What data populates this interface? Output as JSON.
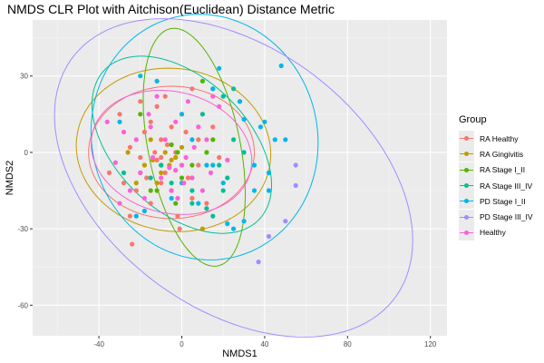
{
  "chart_data": {
    "type": "scatter",
    "title": "NMDS CLR Plot with Aitchison(Euclidean) Distance Metric",
    "xlabel": "NMDS1",
    "ylabel": "NMDS2",
    "xlim": [
      -72,
      128
    ],
    "ylim": [
      -72,
      52
    ],
    "x_ticks": [
      -40,
      0,
      40,
      80,
      120
    ],
    "y_ticks": [
      -60,
      -30,
      0,
      30
    ],
    "grid": true,
    "legend_title": "Group",
    "legend_position": "right",
    "series": [
      {
        "name": "RA Healthy",
        "color": "#F8766D",
        "ellipse": {
          "cx": -5,
          "cy": 0,
          "rx": 40,
          "ry": 26,
          "angle": 0
        },
        "points": [
          [
            -35,
            -8
          ],
          [
            -30,
            15
          ],
          [
            -28,
            -12
          ],
          [
            -25,
            2
          ],
          [
            -22,
            -15
          ],
          [
            -20,
            20
          ],
          [
            -18,
            8
          ],
          [
            -18,
            -5
          ],
          [
            -15,
            12
          ],
          [
            -15,
            -20
          ],
          [
            -12,
            18
          ],
          [
            -12,
            -3
          ],
          [
            -10,
            5
          ],
          [
            -10,
            -12
          ],
          [
            -8,
            22
          ],
          [
            -8,
            -8
          ],
          [
            -5,
            -15
          ],
          [
            -5,
            10
          ],
          [
            -3,
            0
          ],
          [
            -2,
            -25
          ],
          [
            0,
            15
          ],
          [
            0,
            -5
          ],
          [
            2,
            8
          ],
          [
            3,
            -10
          ],
          [
            5,
            25
          ],
          [
            5,
            -18
          ],
          [
            8,
            5
          ],
          [
            8,
            -5
          ],
          [
            10,
            15
          ],
          [
            12,
            -20
          ],
          [
            15,
            10
          ],
          [
            18,
            -2
          ],
          [
            -25,
            -25
          ],
          [
            -20,
            -2
          ],
          [
            -17,
            -10
          ],
          [
            -13,
            0
          ],
          [
            -7,
            3
          ],
          [
            -1,
            -30
          ],
          [
            -24,
            -36
          ],
          [
            -10,
            -2
          ]
        ]
      },
      {
        "name": "RA Gingivitis",
        "color": "#C49A00",
        "ellipse": {
          "cx": -4,
          "cy": 1,
          "rx": 47,
          "ry": 32,
          "angle": -4
        },
        "points": [
          [
            -22,
            -12
          ],
          [
            -18,
            -5
          ],
          [
            -15,
            5
          ],
          [
            -10,
            -8
          ],
          [
            -8,
            0
          ],
          [
            -5,
            -3
          ],
          [
            0,
            2
          ],
          [
            5,
            -10
          ],
          [
            -12,
            -12
          ],
          [
            -6,
            -5
          ],
          [
            10,
            -30
          ],
          [
            -20,
            -8
          ],
          [
            -3,
            -2
          ],
          [
            -14,
            -3
          ],
          [
            -26,
            0
          ]
        ]
      },
      {
        "name": "RA Stage I_II",
        "color": "#53B400",
        "ellipse": {
          "cx": 6,
          "cy": 2,
          "rx": 22,
          "ry": 48,
          "angle": 15
        },
        "points": [
          [
            -20,
            15
          ],
          [
            -15,
            -15
          ],
          [
            -10,
            -5
          ],
          [
            -5,
            3
          ],
          [
            0,
            -10
          ],
          [
            5,
            -5
          ],
          [
            10,
            28
          ],
          [
            12,
            0
          ],
          [
            15,
            5
          ],
          [
            -3,
            -20
          ],
          [
            -12,
            -15
          ],
          [
            -2,
            0
          ]
        ]
      },
      {
        "name": "RA Stage III_IV",
        "color": "#00C094",
        "ellipse": {
          "cx": 0,
          "cy": 3,
          "rx": 48,
          "ry": 28,
          "angle": -32
        },
        "points": [
          [
            -28,
            -8
          ],
          [
            -15,
            -10
          ],
          [
            -5,
            -12
          ],
          [
            5,
            -20
          ],
          [
            10,
            15
          ],
          [
            15,
            25
          ],
          [
            20,
            22
          ],
          [
            25,
            25
          ],
          [
            28,
            20
          ],
          [
            25,
            5
          ],
          [
            22,
            -10
          ],
          [
            20,
            -15
          ],
          [
            15,
            -25
          ],
          [
            12,
            -22
          ],
          [
            5,
            -15
          ],
          [
            -10,
            -5
          ],
          [
            30,
            0
          ],
          [
            18,
            -5
          ]
        ]
      },
      {
        "name": "PD Stage I_II",
        "color": "#00B6EB",
        "ellipse": {
          "cx": 11,
          "cy": 6,
          "rx": 55,
          "ry": 48,
          "angle": -10
        },
        "points": [
          [
            -30,
            12
          ],
          [
            -22,
            -25
          ],
          [
            -20,
            30
          ],
          [
            -12,
            28
          ],
          [
            0,
            15
          ],
          [
            5,
            5
          ],
          [
            15,
            25
          ],
          [
            18,
            33
          ],
          [
            22,
            -28
          ],
          [
            28,
            20
          ],
          [
            30,
            13
          ],
          [
            35,
            -5
          ],
          [
            38,
            10
          ],
          [
            40,
            12
          ],
          [
            42,
            -8
          ],
          [
            45,
            5
          ],
          [
            50,
            5
          ],
          [
            -18,
            -23
          ],
          [
            -5,
            -18
          ],
          [
            12,
            -5
          ],
          [
            25,
            -30
          ],
          [
            30,
            -27
          ],
          [
            35,
            -15
          ],
          [
            8,
            -20
          ],
          [
            42,
            -15
          ],
          [
            48,
            34
          ],
          [
            20,
            -12
          ],
          [
            15,
            -5
          ],
          [
            0,
            -12
          ]
        ]
      },
      {
        "name": "PD Stage III_IV",
        "color": "#A58AFF",
        "ellipse": {
          "cx": 25,
          "cy": -10,
          "rx": 92,
          "ry": 54,
          "angle": -25
        },
        "points": [
          [
            55,
            -5
          ],
          [
            55,
            -13
          ],
          [
            50,
            -27
          ],
          [
            42,
            -33
          ],
          [
            37,
            -43
          ]
        ]
      },
      {
        "name": "Healthy",
        "color": "#FB61D7",
        "ellipse": {
          "cx": -5,
          "cy": 0,
          "rx": 39,
          "ry": 24,
          "angle": -8
        },
        "points": [
          [
            -36,
            12
          ],
          [
            -30,
            -20
          ],
          [
            -28,
            8
          ],
          [
            -25,
            -15
          ],
          [
            -22,
            5
          ],
          [
            -18,
            -18
          ],
          [
            -15,
            10
          ],
          [
            -12,
            22
          ],
          [
            -10,
            -10
          ],
          [
            -8,
            5
          ],
          [
            -5,
            -15
          ],
          [
            -3,
            12
          ],
          [
            0,
            -5
          ],
          [
            3,
            20
          ],
          [
            5,
            -10
          ],
          [
            8,
            10
          ],
          [
            10,
            -15
          ],
          [
            12,
            5
          ],
          [
            15,
            22
          ],
          [
            18,
            18
          ],
          [
            -32,
            -4
          ],
          [
            -20,
            -8
          ],
          [
            -14,
            -2
          ],
          [
            -6,
            -6
          ],
          [
            2,
            -2
          ],
          [
            6,
            2
          ],
          [
            14,
            -8
          ],
          [
            -2,
            -18
          ],
          [
            -16,
            15
          ],
          [
            22,
            -3
          ],
          [
            -3,
            -7
          ],
          [
            1,
            -12
          ]
        ]
      }
    ]
  }
}
